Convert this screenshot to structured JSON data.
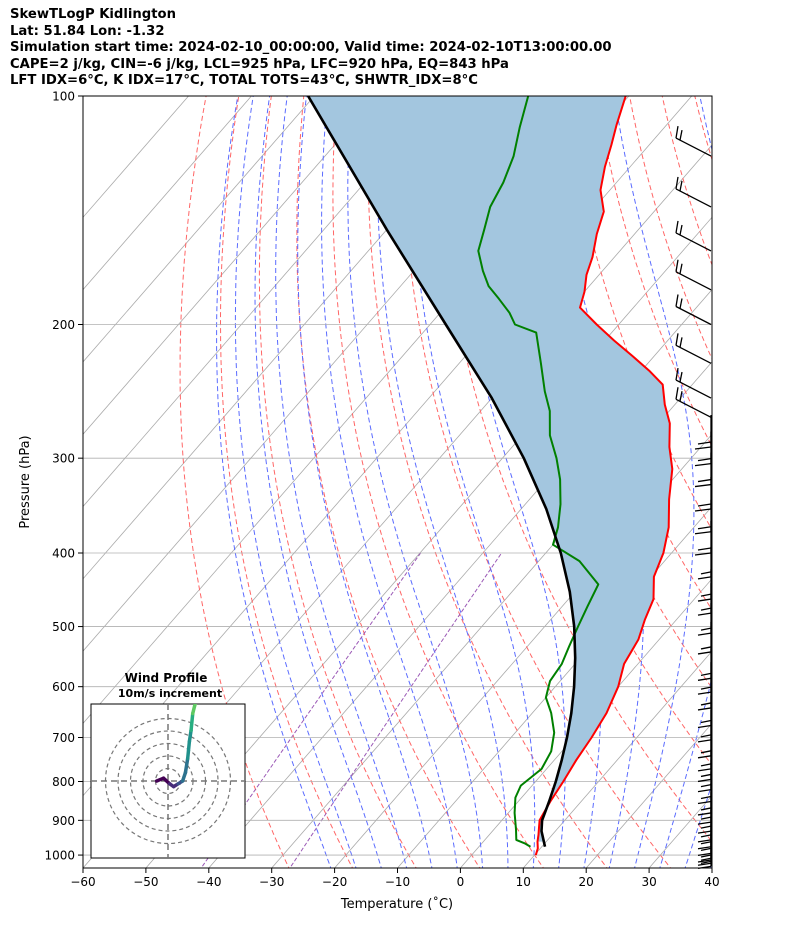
{
  "header": {
    "lines": [
      "SkewTLogP Kidlington",
      "Lat: 51.84   Lon: -1.32",
      "Simulation start time: 2024-02-10_00:00:00, Valid time: 2024-02-10T13:00:00.00",
      "CAPE=2 j/kg, CIN=-6 j/kg, LCL=925 hPa, LFC=920 hPa, EQ=843 hPa",
      "LFT IDX=6°C, K IDX=17°C, TOTAL TOTS=43°C, SHWTR_IDX=8°C"
    ]
  },
  "colors": {
    "temperature": "#ff0000",
    "dewpoint": "#008000",
    "parcel": "#000000",
    "cape_fill": "#a3c6df",
    "dry_adiabat": "#ff6666",
    "moist_adiabat": "#5b6cff",
    "mixing_ratio": "#9b59b6",
    "isotherm": "#aaaaaa",
    "grid": "#b0b0b0"
  },
  "chart_data": {
    "type": "skewt-logp",
    "xlabel": "Temperature (˚C)",
    "ylabel": "Pressure (hPa)",
    "xlim": [
      -60,
      40
    ],
    "ylim": [
      1040,
      100
    ],
    "yscale": "log",
    "xticks": [
      -60,
      -50,
      -40,
      -30,
      -20,
      -10,
      0,
      10,
      20,
      30,
      40
    ],
    "yticks": [
      100,
      200,
      300,
      400,
      500,
      600,
      700,
      800,
      900,
      1000
    ],
    "grid": true,
    "series": [
      {
        "key": "temperature",
        "points": [
          [
            10.2,
            1000
          ],
          [
            9.6,
            980
          ],
          [
            8.6,
            960
          ],
          [
            7.8,
            940
          ],
          [
            6.9,
            920
          ],
          [
            6.0,
            900
          ],
          [
            5.1,
            850
          ],
          [
            4.4,
            800
          ],
          [
            3.5,
            750
          ],
          [
            2.8,
            700
          ],
          [
            1.8,
            650
          ],
          [
            0.0,
            600
          ],
          [
            -2.2,
            560
          ],
          [
            -3.3,
            520
          ],
          [
            -5.0,
            490
          ],
          [
            -6.5,
            460
          ],
          [
            -9.5,
            430
          ],
          [
            -11.3,
            400
          ],
          [
            -14.0,
            370
          ],
          [
            -17.8,
            340
          ],
          [
            -21.5,
            310
          ],
          [
            -25.0,
            290
          ],
          [
            -28.2,
            270
          ],
          [
            -31.6,
            255
          ],
          [
            -34.7,
            240
          ],
          [
            -38.8,
            230
          ],
          [
            -43.5,
            220
          ],
          [
            -48.5,
            210
          ],
          [
            -53.5,
            200
          ],
          [
            -58.5,
            190
          ],
          [
            -60.0,
            181
          ],
          [
            -62.0,
            172
          ],
          [
            -63.5,
            163
          ],
          [
            -66.0,
            152
          ],
          [
            -68.0,
            142
          ],
          [
            -71.5,
            133
          ],
          [
            -74.0,
            124
          ],
          [
            -76.0,
            116
          ],
          [
            -78.0,
            109
          ],
          [
            -80.5,
            100
          ]
        ]
      },
      {
        "key": "dewpoint",
        "points": [
          [
            8.2,
            975
          ],
          [
            6.8,
            965
          ],
          [
            5.0,
            955
          ],
          [
            3.5,
            925
          ],
          [
            1.0,
            880
          ],
          [
            -1.0,
            840
          ],
          [
            -1.8,
            810
          ],
          [
            -0.8,
            770
          ],
          [
            -1.7,
            730
          ],
          [
            -3.8,
            690
          ],
          [
            -7.0,
            650
          ],
          [
            -10.0,
            620
          ],
          [
            -11.6,
            590
          ],
          [
            -12.1,
            560
          ],
          [
            -13.4,
            530
          ],
          [
            -14.7,
            500
          ],
          [
            -16.0,
            470
          ],
          [
            -17.3,
            440
          ],
          [
            -23.5,
            410
          ],
          [
            -30.0,
            390
          ],
          [
            -31.6,
            370
          ],
          [
            -34.4,
            345
          ],
          [
            -37.9,
            320
          ],
          [
            -41.4,
            300
          ],
          [
            -45.6,
            280
          ],
          [
            -49.0,
            260
          ],
          [
            -52.5,
            245
          ],
          [
            -57.0,
            225
          ],
          [
            -62.0,
            205
          ],
          [
            -66.5,
            200
          ],
          [
            -69.0,
            193
          ],
          [
            -72.6,
            185
          ],
          [
            -76.0,
            178
          ],
          [
            -79.0,
            170
          ],
          [
            -82.5,
            160
          ],
          [
            -84.5,
            150
          ],
          [
            -86.7,
            140
          ],
          [
            -88.0,
            130
          ],
          [
            -90.0,
            120
          ],
          [
            -93.0,
            110
          ],
          [
            -96.0,
            100
          ]
        ]
      },
      {
        "key": "parcel",
        "points": [
          [
            10.5,
            975
          ],
          [
            7.8,
            930
          ],
          [
            6.4,
            900
          ],
          [
            4.9,
            850
          ],
          [
            3.2,
            800
          ],
          [
            1.2,
            750
          ],
          [
            -1.1,
            700
          ],
          [
            -3.8,
            650
          ],
          [
            -7.0,
            600
          ],
          [
            -10.8,
            550
          ],
          [
            -15.3,
            500
          ],
          [
            -20.8,
            450
          ],
          [
            -27.6,
            400
          ],
          [
            -36.0,
            350
          ],
          [
            -46.6,
            300
          ],
          [
            -60.0,
            250
          ],
          [
            -77.5,
            200
          ],
          [
            -100.0,
            150
          ],
          [
            -131.0,
            100
          ]
        ]
      }
    ],
    "wind_barbs": {
      "levels_hPa": [
        1035,
        1025,
        1015,
        995,
        975,
        955,
        930,
        905,
        880,
        850,
        820,
        795,
        770,
        740,
        705,
        675,
        640,
        610,
        585,
        540,
        510,
        480,
        460,
        430,
        400,
        375,
        350,
        325,
        305,
        290,
        265,
        250,
        225,
        200,
        180,
        160,
        140,
        120
      ]
    },
    "inset": {
      "title": "Wind Profile",
      "subtitle": "10m/s increment",
      "hodograph_points": [
        [
          0,
          -10
        ],
        [
          0.5,
          -4
        ],
        [
          -0.5,
          1.5
        ],
        [
          -1,
          5
        ],
        [
          -0.5,
          9
        ],
        [
          0,
          13
        ],
        [
          1.5,
          15.5
        ],
        [
          4,
          17.5
        ],
        [
          7,
          19
        ],
        [
          9,
          20.5
        ],
        [
          12,
          22
        ],
        [
          14,
          24.5
        ],
        [
          17,
          27
        ],
        [
          18,
          29
        ],
        [
          19,
          32
        ],
        [
          19,
          33
        ]
      ]
    }
  }
}
